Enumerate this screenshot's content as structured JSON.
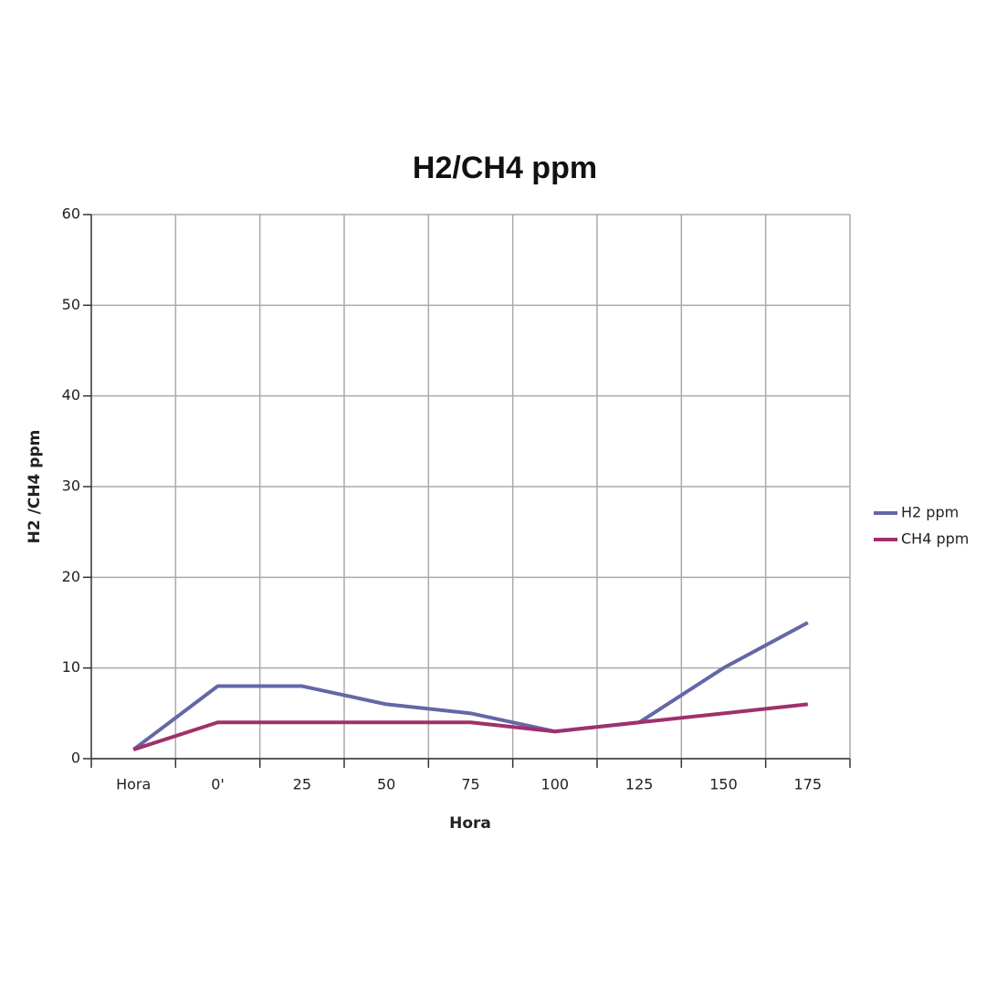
{
  "chart_data": {
    "type": "line",
    "title": "H2/CH4 ppm",
    "x_label": "Hora",
    "y_label": "H2 /CH4 ppm",
    "categories": [
      "Hora",
      "0'",
      "25",
      "50",
      "75",
      "100",
      "125",
      "150",
      "175"
    ],
    "series": [
      {
        "name": "H2 ppm",
        "color": "#6467a6",
        "values": [
          1,
          8,
          8,
          6,
          5,
          3,
          4,
          10,
          15
        ]
      },
      {
        "name": "CH4 ppm",
        "color": "#a0306c",
        "values": [
          1,
          4,
          4,
          4,
          4,
          3,
          4,
          5,
          6
        ]
      }
    ],
    "ylim": [
      0,
      60
    ],
    "yticks": [
      0,
      10,
      20,
      30,
      40,
      50,
      60
    ],
    "grid": true,
    "legend": "right"
  }
}
